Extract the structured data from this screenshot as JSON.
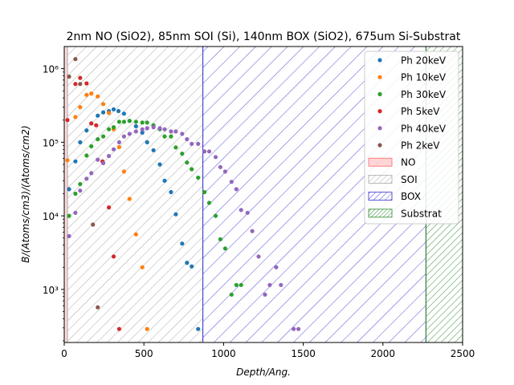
{
  "chart_data": {
    "type": "scatter",
    "title": "2nm NO (SiO2), 85nm SOI (Si), 140nm BOX (SiO2), 675um Si-Substrat",
    "xlabel": "Depth/Ang.",
    "ylabel": "B/(Atoms/cm3)/(Atoms/cm2)",
    "xlim": [
      0,
      2500
    ],
    "ylim": [
      190,
      2000000
    ],
    "yscale": "log",
    "x_ticks": [
      "0",
      "500",
      "1000",
      "1500",
      "2000",
      "2500"
    ],
    "y_ticks": [
      {
        "value": 1000,
        "label": "10³"
      },
      {
        "value": 10000,
        "label": "10⁴"
      },
      {
        "value": 100000,
        "label": "10⁵"
      },
      {
        "value": 1000000,
        "label": "10⁶"
      }
    ],
    "legend_position": "upper right",
    "layers": [
      {
        "name": "NO",
        "x0": 0,
        "x1": 20,
        "fill": "#ff9999",
        "edge": "#ff6666",
        "style": "solid"
      },
      {
        "name": "SOI",
        "x0": 20,
        "x1": 870,
        "fill": "none",
        "edge": "#aaaaaa",
        "style": "hatch"
      },
      {
        "name": "BOX",
        "x0": 870,
        "x1": 2270,
        "fill": "none",
        "edge": "#3333cc",
        "style": "hatch"
      },
      {
        "name": "Substrat",
        "x0": 2270,
        "x1": 2500,
        "fill": "none",
        "edge": "#2e8b2e",
        "style": "hatch-dense"
      }
    ],
    "series": [
      {
        "name": "Ph 20keV",
        "color": "#1f77b4",
        "points": [
          [
            30,
            23000
          ],
          [
            70,
            55000
          ],
          [
            100,
            100000
          ],
          [
            140,
            145000
          ],
          [
            170,
            180000
          ],
          [
            210,
            230000
          ],
          [
            245,
            255000
          ],
          [
            280,
            265000
          ],
          [
            310,
            280000
          ],
          [
            340,
            265000
          ],
          [
            375,
            245000
          ],
          [
            410,
            195000
          ],
          [
            450,
            165000
          ],
          [
            490,
            135000
          ],
          [
            520,
            100000
          ],
          [
            560,
            78000
          ],
          [
            600,
            50000
          ],
          [
            630,
            30000
          ],
          [
            670,
            21000
          ],
          [
            700,
            10500
          ],
          [
            740,
            4200
          ],
          [
            770,
            2300
          ],
          [
            800,
            2050
          ],
          [
            840,
            290
          ]
        ]
      },
      {
        "name": "Ph 10keV",
        "color": "#ff7f0e",
        "points": [
          [
            20,
            57000
          ],
          [
            70,
            220000
          ],
          [
            100,
            300000
          ],
          [
            140,
            440000
          ],
          [
            170,
            460000
          ],
          [
            210,
            420000
          ],
          [
            245,
            330000
          ],
          [
            280,
            250000
          ],
          [
            310,
            150000
          ],
          [
            345,
            86000
          ],
          [
            375,
            40000
          ],
          [
            410,
            17000
          ],
          [
            450,
            5600
          ],
          [
            490,
            2000
          ],
          [
            520,
            290
          ]
        ]
      },
      {
        "name": "Ph 30keV",
        "color": "#2ca02c",
        "points": [
          [
            30,
            10000
          ],
          [
            70,
            20000
          ],
          [
            100,
            27000
          ],
          [
            140,
            66000
          ],
          [
            170,
            88000
          ],
          [
            210,
            110000
          ],
          [
            245,
            120000
          ],
          [
            280,
            150000
          ],
          [
            310,
            160000
          ],
          [
            345,
            190000
          ],
          [
            375,
            190000
          ],
          [
            410,
            195000
          ],
          [
            450,
            190000
          ],
          [
            490,
            185000
          ],
          [
            520,
            185000
          ],
          [
            560,
            170000
          ],
          [
            600,
            150000
          ],
          [
            630,
            120000
          ],
          [
            670,
            120000
          ],
          [
            700,
            85000
          ],
          [
            740,
            70000
          ],
          [
            770,
            53000
          ],
          [
            800,
            43000
          ],
          [
            840,
            33000
          ],
          [
            880,
            21000
          ],
          [
            910,
            15000
          ],
          [
            950,
            10000
          ],
          [
            980,
            4800
          ],
          [
            1010,
            3600
          ],
          [
            1050,
            850
          ],
          [
            1080,
            1150
          ],
          [
            1110,
            1150
          ]
        ]
      },
      {
        "name": "Ph 5keV",
        "color": "#d62728",
        "points": [
          [
            20,
            200000
          ],
          [
            70,
            620000
          ],
          [
            100,
            750000
          ],
          [
            140,
            630000
          ],
          [
            170,
            180000
          ],
          [
            200,
            170000
          ],
          [
            240,
            55000
          ],
          [
            280,
            13000
          ],
          [
            310,
            2800
          ],
          [
            345,
            290
          ]
        ]
      },
      {
        "name": "Ph 40keV",
        "color": "#9467bd",
        "points": [
          [
            30,
            5300
          ],
          [
            70,
            11000
          ],
          [
            100,
            22000
          ],
          [
            140,
            32000
          ],
          [
            170,
            38000
          ],
          [
            210,
            58000
          ],
          [
            245,
            52000
          ],
          [
            280,
            65000
          ],
          [
            310,
            80000
          ],
          [
            345,
            100000
          ],
          [
            375,
            120000
          ],
          [
            410,
            130000
          ],
          [
            450,
            140000
          ],
          [
            490,
            150000
          ],
          [
            520,
            155000
          ],
          [
            560,
            160000
          ],
          [
            600,
            155000
          ],
          [
            630,
            150000
          ],
          [
            670,
            140000
          ],
          [
            700,
            140000
          ],
          [
            740,
            130000
          ],
          [
            770,
            110000
          ],
          [
            800,
            95000
          ],
          [
            840,
            95000
          ],
          [
            880,
            75000
          ],
          [
            910,
            75000
          ],
          [
            950,
            63000
          ],
          [
            980,
            46000
          ],
          [
            1010,
            40000
          ],
          [
            1050,
            29000
          ],
          [
            1080,
            23000
          ],
          [
            1110,
            12000
          ],
          [
            1150,
            11000
          ],
          [
            1180,
            6200
          ],
          [
            1220,
            2800
          ],
          [
            1260,
            850
          ],
          [
            1290,
            1150
          ],
          [
            1330,
            2000
          ],
          [
            1360,
            1150
          ],
          [
            1440,
            290
          ],
          [
            1470,
            290
          ]
        ]
      },
      {
        "name": "Ph 2keV",
        "color": "#8c564b",
        "points": [
          [
            30,
            780000
          ],
          [
            70,
            1350000
          ],
          [
            100,
            620000
          ],
          [
            180,
            7600
          ],
          [
            210,
            570
          ]
        ]
      }
    ]
  }
}
